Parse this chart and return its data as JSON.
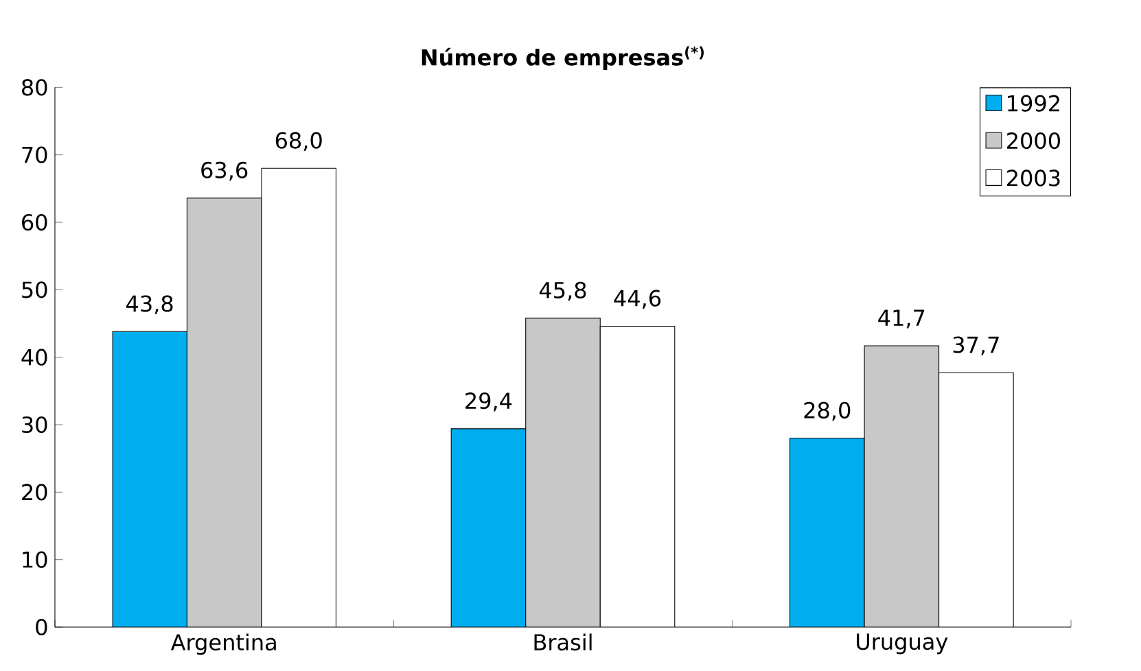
{
  "chart_data": {
    "type": "bar",
    "title": "Número de empresas$^{(*)}$",
    "categories": [
      "Argentina",
      "Brasil",
      "Uruguay"
    ],
    "series": [
      {
        "name": "1992",
        "color": "#00aeef",
        "values": [
          43.8,
          29.4,
          28.0
        ],
        "value_labels": [
          "43,8",
          "29,4",
          "28,0"
        ]
      },
      {
        "name": "2000",
        "color": "#c8c8c8",
        "values": [
          63.6,
          45.8,
          41.7
        ],
        "value_labels": [
          "63,6",
          "45,8",
          "41,7"
        ]
      },
      {
        "name": "2003",
        "color": "#ffffff",
        "values": [
          68.0,
          44.6,
          37.7
        ],
        "value_labels": [
          "68,0",
          "44,6",
          "37,7"
        ]
      }
    ],
    "ylim": [
      0,
      80
    ],
    "yticks": [
      0,
      10,
      20,
      30,
      40,
      50,
      60,
      70,
      80
    ],
    "grid": false,
    "legend": "top right"
  }
}
